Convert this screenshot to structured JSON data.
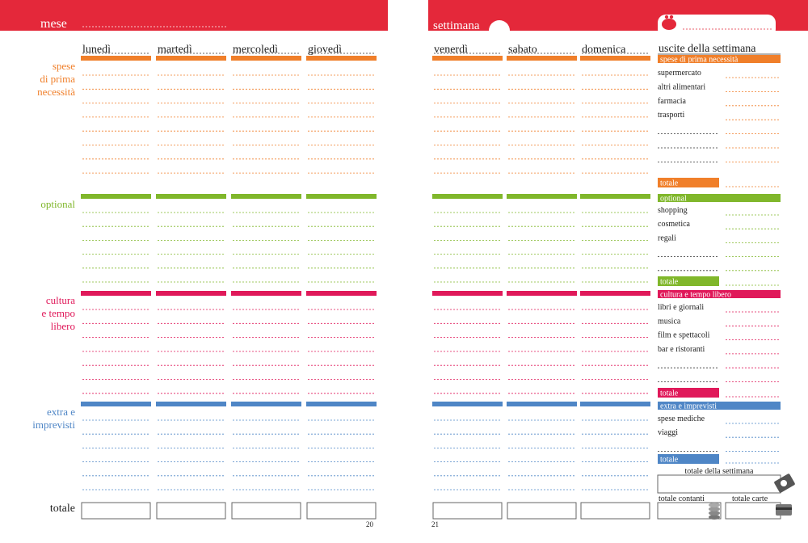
{
  "header": {
    "left_label": "mese",
    "right_label": "settimana"
  },
  "days": [
    "lunedì",
    "martedì",
    "mercoledì",
    "giovedì",
    "venerdì",
    "sabato",
    "domenica"
  ],
  "sections": [
    {
      "lines": [
        "spese",
        "di prima",
        "necessità"
      ]
    },
    {
      "lines": [
        "optional"
      ]
    },
    {
      "lines": [
        "cultura",
        "e tempo",
        "libero"
      ]
    },
    {
      "lines": [
        "extra e",
        "imprevisti"
      ]
    }
  ],
  "summary": {
    "title": "uscite della settimana",
    "groups": [
      {
        "name": "spese di prima necessità",
        "items": [
          "supermercato",
          "altri alimentari",
          "farmacia",
          "trasporti"
        ],
        "total": "totale"
      },
      {
        "name": "optional",
        "items": [
          "shopping",
          "cosmetica",
          "regali"
        ],
        "total": "totale"
      },
      {
        "name": "cultura e tempo libero",
        "items": [
          "libri e giornali",
          "musica",
          "film e spettacoli",
          "bar e ristoranti"
        ],
        "total": "totale"
      },
      {
        "name": "extra e imprevisti",
        "items": [
          "spese mediche",
          "viaggi"
        ],
        "total": "totale"
      }
    ],
    "week_total": "totale della settimana",
    "cash": "totale contanti",
    "cards": "totale carte"
  },
  "footer": {
    "totale": "totale",
    "page_left": 20,
    "page_right": 21
  }
}
